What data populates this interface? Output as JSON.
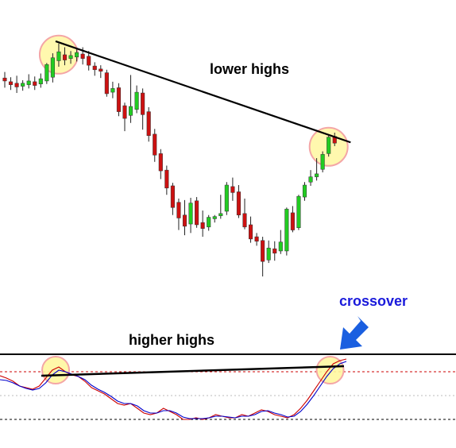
{
  "chart_data": [
    {
      "type": "candlestick",
      "panel": "price",
      "annotations": {
        "trendline_label": "lower highs"
      },
      "trend": "lower highs",
      "candles": [
        {
          "o": 58.3,
          "h": 59.1,
          "c": 57.9,
          "l": 57.0,
          "dir": "down"
        },
        {
          "o": 57.8,
          "h": 58.4,
          "c": 57.4,
          "l": 56.7,
          "dir": "down"
        },
        {
          "o": 57.6,
          "h": 58.6,
          "c": 57.1,
          "l": 56.3,
          "dir": "down"
        },
        {
          "o": 57.2,
          "h": 58.0,
          "c": 57.6,
          "l": 56.6,
          "dir": "up"
        },
        {
          "o": 57.4,
          "h": 58.8,
          "c": 57.9,
          "l": 56.9,
          "dir": "up"
        },
        {
          "o": 57.8,
          "h": 58.5,
          "c": 57.3,
          "l": 56.7,
          "dir": "down"
        },
        {
          "o": 57.5,
          "h": 58.9,
          "c": 58.2,
          "l": 57.0,
          "dir": "up"
        },
        {
          "o": 57.9,
          "h": 60.3,
          "c": 60.1,
          "l": 57.5,
          "dir": "up"
        },
        {
          "o": 58.4,
          "h": 61.6,
          "c": 61.0,
          "l": 57.7,
          "dir": "up"
        },
        {
          "o": 60.6,
          "h": 62.9,
          "c": 61.8,
          "l": 59.8,
          "dir": "up"
        },
        {
          "o": 61.4,
          "h": 62.4,
          "c": 60.7,
          "l": 60.0,
          "dir": "down"
        },
        {
          "o": 60.9,
          "h": 61.9,
          "c": 61.3,
          "l": 60.2,
          "dir": "up"
        },
        {
          "o": 61.1,
          "h": 62.2,
          "c": 61.7,
          "l": 60.5,
          "dir": "up"
        },
        {
          "o": 61.5,
          "h": 62.4,
          "c": 60.9,
          "l": 60.1,
          "dir": "down"
        },
        {
          "o": 61.2,
          "h": 61.9,
          "c": 60.0,
          "l": 59.3,
          "dir": "down"
        },
        {
          "o": 59.9,
          "h": 60.4,
          "c": 59.4,
          "l": 58.6,
          "dir": "down"
        },
        {
          "o": 59.5,
          "h": 60.0,
          "c": 59.2,
          "l": 58.3,
          "dir": "down"
        },
        {
          "o": 59.0,
          "h": 59.4,
          "c": 56.2,
          "l": 55.8,
          "dir": "down"
        },
        {
          "o": 56.4,
          "h": 57.8,
          "c": 56.9,
          "l": 55.6,
          "dir": "up"
        },
        {
          "o": 57.0,
          "h": 57.6,
          "c": 53.8,
          "l": 53.2,
          "dir": "down"
        },
        {
          "o": 54.6,
          "h": 55.0,
          "c": 52.9,
          "l": 51.2,
          "dir": "down"
        },
        {
          "o": 53.3,
          "h": 58.7,
          "c": 54.5,
          "l": 52.3,
          "dir": "up"
        },
        {
          "o": 54.1,
          "h": 57.3,
          "c": 56.4,
          "l": 53.6,
          "dir": "up"
        },
        {
          "o": 56.3,
          "h": 56.9,
          "c": 53.4,
          "l": 51.4,
          "dir": "down"
        },
        {
          "o": 53.8,
          "h": 54.4,
          "c": 50.6,
          "l": 49.8,
          "dir": "down"
        },
        {
          "o": 50.8,
          "h": 51.5,
          "c": 48.0,
          "l": 47.1,
          "dir": "down"
        },
        {
          "o": 48.2,
          "h": 48.8,
          "c": 45.9,
          "l": 44.8,
          "dir": "down"
        },
        {
          "o": 46.0,
          "h": 46.6,
          "c": 43.6,
          "l": 42.7,
          "dir": "down"
        },
        {
          "o": 43.9,
          "h": 44.3,
          "c": 41.0,
          "l": 40.0,
          "dir": "down"
        },
        {
          "o": 41.7,
          "h": 42.2,
          "c": 39.6,
          "l": 38.0,
          "dir": "down"
        },
        {
          "o": 40.0,
          "h": 42.0,
          "c": 38.5,
          "l": 37.3,
          "dir": "down"
        },
        {
          "o": 38.8,
          "h": 42.3,
          "c": 41.6,
          "l": 37.6,
          "dir": "up"
        },
        {
          "o": 41.9,
          "h": 42.4,
          "c": 38.7,
          "l": 38.3,
          "dir": "down"
        },
        {
          "o": 39.0,
          "h": 40.6,
          "c": 38.2,
          "l": 37.1,
          "dir": "down"
        },
        {
          "o": 38.4,
          "h": 40.0,
          "c": 39.7,
          "l": 37.9,
          "dir": "up"
        },
        {
          "o": 39.5,
          "h": 40.0,
          "c": 39.8,
          "l": 39.0,
          "dir": "up"
        },
        {
          "o": 39.9,
          "h": 42.7,
          "c": 40.2,
          "l": 39.5,
          "dir": "up"
        },
        {
          "o": 40.5,
          "h": 44.4,
          "c": 44.0,
          "l": 40.0,
          "dir": "up"
        },
        {
          "o": 43.8,
          "h": 45.0,
          "c": 43.0,
          "l": 41.9,
          "dir": "down"
        },
        {
          "o": 43.1,
          "h": 44.0,
          "c": 40.0,
          "l": 39.6,
          "dir": "down"
        },
        {
          "o": 40.2,
          "h": 42.2,
          "c": 38.4,
          "l": 38.1,
          "dir": "down"
        },
        {
          "o": 38.7,
          "h": 39.8,
          "c": 36.8,
          "l": 36.3,
          "dir": "down"
        },
        {
          "o": 37.1,
          "h": 37.6,
          "c": 36.5,
          "l": 35.9,
          "dir": "down"
        },
        {
          "o": 36.6,
          "h": 37.1,
          "c": 33.8,
          "l": 31.8,
          "dir": "down"
        },
        {
          "o": 34.0,
          "h": 36.6,
          "c": 35.6,
          "l": 33.6,
          "dir": "up"
        },
        {
          "o": 35.5,
          "h": 36.5,
          "c": 34.9,
          "l": 33.9,
          "dir": "down"
        },
        {
          "o": 35.2,
          "h": 38.0,
          "c": 36.4,
          "l": 34.8,
          "dir": "up"
        },
        {
          "o": 35.2,
          "h": 41.0,
          "c": 40.8,
          "l": 34.6,
          "dir": "up"
        },
        {
          "o": 40.3,
          "h": 41.2,
          "c": 38.0,
          "l": 37.7,
          "dir": "down"
        },
        {
          "o": 38.3,
          "h": 42.7,
          "c": 42.5,
          "l": 38.0,
          "dir": "up"
        },
        {
          "o": 42.4,
          "h": 44.4,
          "c": 44.0,
          "l": 41.9,
          "dir": "up"
        },
        {
          "o": 44.4,
          "h": 46.0,
          "c": 45.1,
          "l": 43.9,
          "dir": "up"
        },
        {
          "o": 45.1,
          "h": 47.6,
          "c": 45.5,
          "l": 44.6,
          "dir": "up"
        },
        {
          "o": 46.1,
          "h": 48.5,
          "c": 48.1,
          "l": 45.7,
          "dir": "up"
        },
        {
          "o": 48.2,
          "h": 50.6,
          "c": 50.4,
          "l": 47.8,
          "dir": "up"
        },
        {
          "o": 50.5,
          "h": 51.0,
          "c": 49.6,
          "l": 49.2,
          "dir": "down"
        }
      ],
      "trendline": {
        "from_index": 9,
        "from_price": 63.2,
        "to_index": 57,
        "to_price": 49.7
      },
      "highlight_index": [
        9,
        54
      ]
    },
    {
      "type": "line",
      "panel": "oscillator",
      "annotations": {
        "crossover_label": "crossover",
        "trendline_label": "higher highs"
      },
      "trend": "higher highs",
      "series": [
        {
          "color": "#cc0000",
          "values": [
            75,
            72,
            68,
            62,
            60,
            58,
            62,
            72,
            82,
            86,
            80,
            76,
            74,
            68,
            60,
            56,
            52,
            46,
            40,
            38,
            40,
            34,
            28,
            26,
            28,
            34,
            30,
            26,
            20,
            20,
            22,
            20,
            22,
            26,
            24,
            22,
            22,
            26,
            24,
            28,
            32,
            30,
            26,
            24,
            22,
            26,
            34,
            44,
            56,
            68,
            80,
            90,
            94,
            96
          ]
        },
        {
          "color": "#0000cc",
          "values": [
            70,
            69,
            66,
            62,
            59,
            57,
            59,
            66,
            76,
            82,
            80,
            77,
            74,
            70,
            63,
            58,
            54,
            49,
            43,
            40,
            40,
            37,
            31,
            28,
            28,
            31,
            31,
            28,
            23,
            21,
            21,
            21,
            22,
            24,
            24,
            23,
            22,
            24,
            24,
            26,
            30,
            31,
            28,
            26,
            23,
            24,
            30,
            39,
            50,
            62,
            74,
            84,
            90,
            93
          ]
        }
      ],
      "levels": [
        80,
        50,
        20
      ],
      "highlight_index": [
        9,
        51
      ]
    }
  ]
}
